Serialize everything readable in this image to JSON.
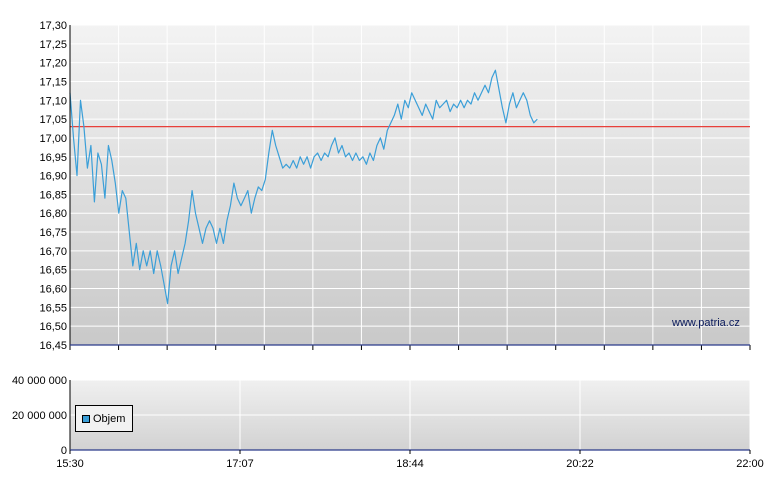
{
  "chart_data": [
    {
      "type": "line",
      "title": "",
      "xlabel": "",
      "ylabel": "",
      "ylim": [
        16.45,
        17.3
      ],
      "y_ticks": [
        "17,30",
        "17,25",
        "17,20",
        "17,15",
        "17,10",
        "17,05",
        "17,00",
        "16,95",
        "16,90",
        "16,85",
        "16,80",
        "16,75",
        "16,70",
        "16,65",
        "16,60",
        "16,55",
        "16,50",
        "16,45"
      ],
      "x_tick_labels": [
        "15:30",
        "17:07",
        "18:44",
        "20:22",
        "22:00"
      ],
      "x_range_minutes": [
        930,
        1320
      ],
      "grid": true,
      "reference_line": {
        "value": 17.03,
        "color": "#e8403a"
      },
      "series": [
        {
          "color": "#3b9fd8",
          "points": [
            [
              930,
              17.12
            ],
            [
              932,
              17.0
            ],
            [
              934,
              16.9
            ],
            [
              936,
              17.1
            ],
            [
              938,
              17.03
            ],
            [
              940,
              16.92
            ],
            [
              942,
              16.98
            ],
            [
              944,
              16.83
            ],
            [
              946,
              16.96
            ],
            [
              948,
              16.93
            ],
            [
              950,
              16.84
            ],
            [
              952,
              16.98
            ],
            [
              954,
              16.94
            ],
            [
              956,
              16.88
            ],
            [
              958,
              16.8
            ],
            [
              960,
              16.86
            ],
            [
              962,
              16.84
            ],
            [
              964,
              16.75
            ],
            [
              966,
              16.66
            ],
            [
              968,
              16.72
            ],
            [
              970,
              16.65
            ],
            [
              972,
              16.7
            ],
            [
              974,
              16.66
            ],
            [
              976,
              16.7
            ],
            [
              978,
              16.64
            ],
            [
              980,
              16.7
            ],
            [
              982,
              16.66
            ],
            [
              984,
              16.61
            ],
            [
              986,
              16.56
            ],
            [
              988,
              16.66
            ],
            [
              990,
              16.7
            ],
            [
              992,
              16.64
            ],
            [
              994,
              16.68
            ],
            [
              996,
              16.72
            ],
            [
              998,
              16.78
            ],
            [
              1000,
              16.86
            ],
            [
              1002,
              16.8
            ],
            [
              1004,
              16.76
            ],
            [
              1006,
              16.72
            ],
            [
              1008,
              16.76
            ],
            [
              1010,
              16.78
            ],
            [
              1012,
              16.76
            ],
            [
              1014,
              16.72
            ],
            [
              1016,
              16.76
            ],
            [
              1018,
              16.72
            ],
            [
              1020,
              16.78
            ],
            [
              1022,
              16.82
            ],
            [
              1024,
              16.88
            ],
            [
              1026,
              16.84
            ],
            [
              1028,
              16.82
            ],
            [
              1030,
              16.84
            ],
            [
              1032,
              16.86
            ],
            [
              1034,
              16.8
            ],
            [
              1036,
              16.84
            ],
            [
              1038,
              16.87
            ],
            [
              1040,
              16.86
            ],
            [
              1042,
              16.89
            ],
            [
              1044,
              16.96
            ],
            [
              1046,
              17.02
            ],
            [
              1048,
              16.98
            ],
            [
              1050,
              16.95
            ],
            [
              1052,
              16.92
            ],
            [
              1054,
              16.93
            ],
            [
              1056,
              16.92
            ],
            [
              1058,
              16.94
            ],
            [
              1060,
              16.92
            ],
            [
              1062,
              16.95
            ],
            [
              1064,
              16.93
            ],
            [
              1066,
              16.95
            ],
            [
              1068,
              16.92
            ],
            [
              1070,
              16.95
            ],
            [
              1072,
              16.96
            ],
            [
              1074,
              16.94
            ],
            [
              1076,
              16.96
            ],
            [
              1078,
              16.95
            ],
            [
              1080,
              16.98
            ],
            [
              1082,
              17.0
            ],
            [
              1084,
              16.96
            ],
            [
              1086,
              16.98
            ],
            [
              1088,
              16.95
            ],
            [
              1090,
              16.96
            ],
            [
              1092,
              16.94
            ],
            [
              1094,
              16.96
            ],
            [
              1096,
              16.94
            ],
            [
              1098,
              16.95
            ],
            [
              1100,
              16.93
            ],
            [
              1102,
              16.96
            ],
            [
              1104,
              16.94
            ],
            [
              1106,
              16.98
            ],
            [
              1108,
              17.0
            ],
            [
              1110,
              16.97
            ],
            [
              1112,
              17.02
            ],
            [
              1114,
              17.04
            ],
            [
              1116,
              17.06
            ],
            [
              1118,
              17.09
            ],
            [
              1120,
              17.05
            ],
            [
              1122,
              17.1
            ],
            [
              1124,
              17.08
            ],
            [
              1126,
              17.12
            ],
            [
              1128,
              17.1
            ],
            [
              1130,
              17.08
            ],
            [
              1132,
              17.06
            ],
            [
              1134,
              17.09
            ],
            [
              1136,
              17.07
            ],
            [
              1138,
              17.05
            ],
            [
              1140,
              17.1
            ],
            [
              1142,
              17.08
            ],
            [
              1144,
              17.09
            ],
            [
              1146,
              17.1
            ],
            [
              1148,
              17.07
            ],
            [
              1150,
              17.09
            ],
            [
              1152,
              17.08
            ],
            [
              1154,
              17.1
            ],
            [
              1156,
              17.08
            ],
            [
              1158,
              17.1
            ],
            [
              1160,
              17.09
            ],
            [
              1162,
              17.12
            ],
            [
              1164,
              17.1
            ],
            [
              1166,
              17.12
            ],
            [
              1168,
              17.14
            ],
            [
              1170,
              17.12
            ],
            [
              1172,
              17.16
            ],
            [
              1174,
              17.18
            ],
            [
              1176,
              17.13
            ],
            [
              1178,
              17.08
            ],
            [
              1180,
              17.04
            ],
            [
              1182,
              17.09
            ],
            [
              1184,
              17.12
            ],
            [
              1186,
              17.08
            ],
            [
              1188,
              17.1
            ],
            [
              1190,
              17.12
            ],
            [
              1192,
              17.1
            ],
            [
              1194,
              17.06
            ],
            [
              1196,
              17.04
            ],
            [
              1198,
              17.05
            ]
          ]
        }
      ]
    },
    {
      "type": "bar",
      "title": "",
      "xlabel": "",
      "ylabel": "",
      "ylim": [
        0,
        40000000
      ],
      "y_ticks": [
        "40 000 000",
        "20 000 000",
        "0"
      ],
      "x_tick_labels": [
        "15:30",
        "17:07",
        "18:44",
        "20:22",
        "22:00"
      ],
      "x_range_minutes": [
        930,
        1320
      ],
      "grid": true,
      "legend_placement": "bottom-left",
      "series": [
        {
          "name": "Objem",
          "color": "#3b9fd8",
          "values": []
        }
      ]
    }
  ],
  "watermark": "www.patria.cz"
}
